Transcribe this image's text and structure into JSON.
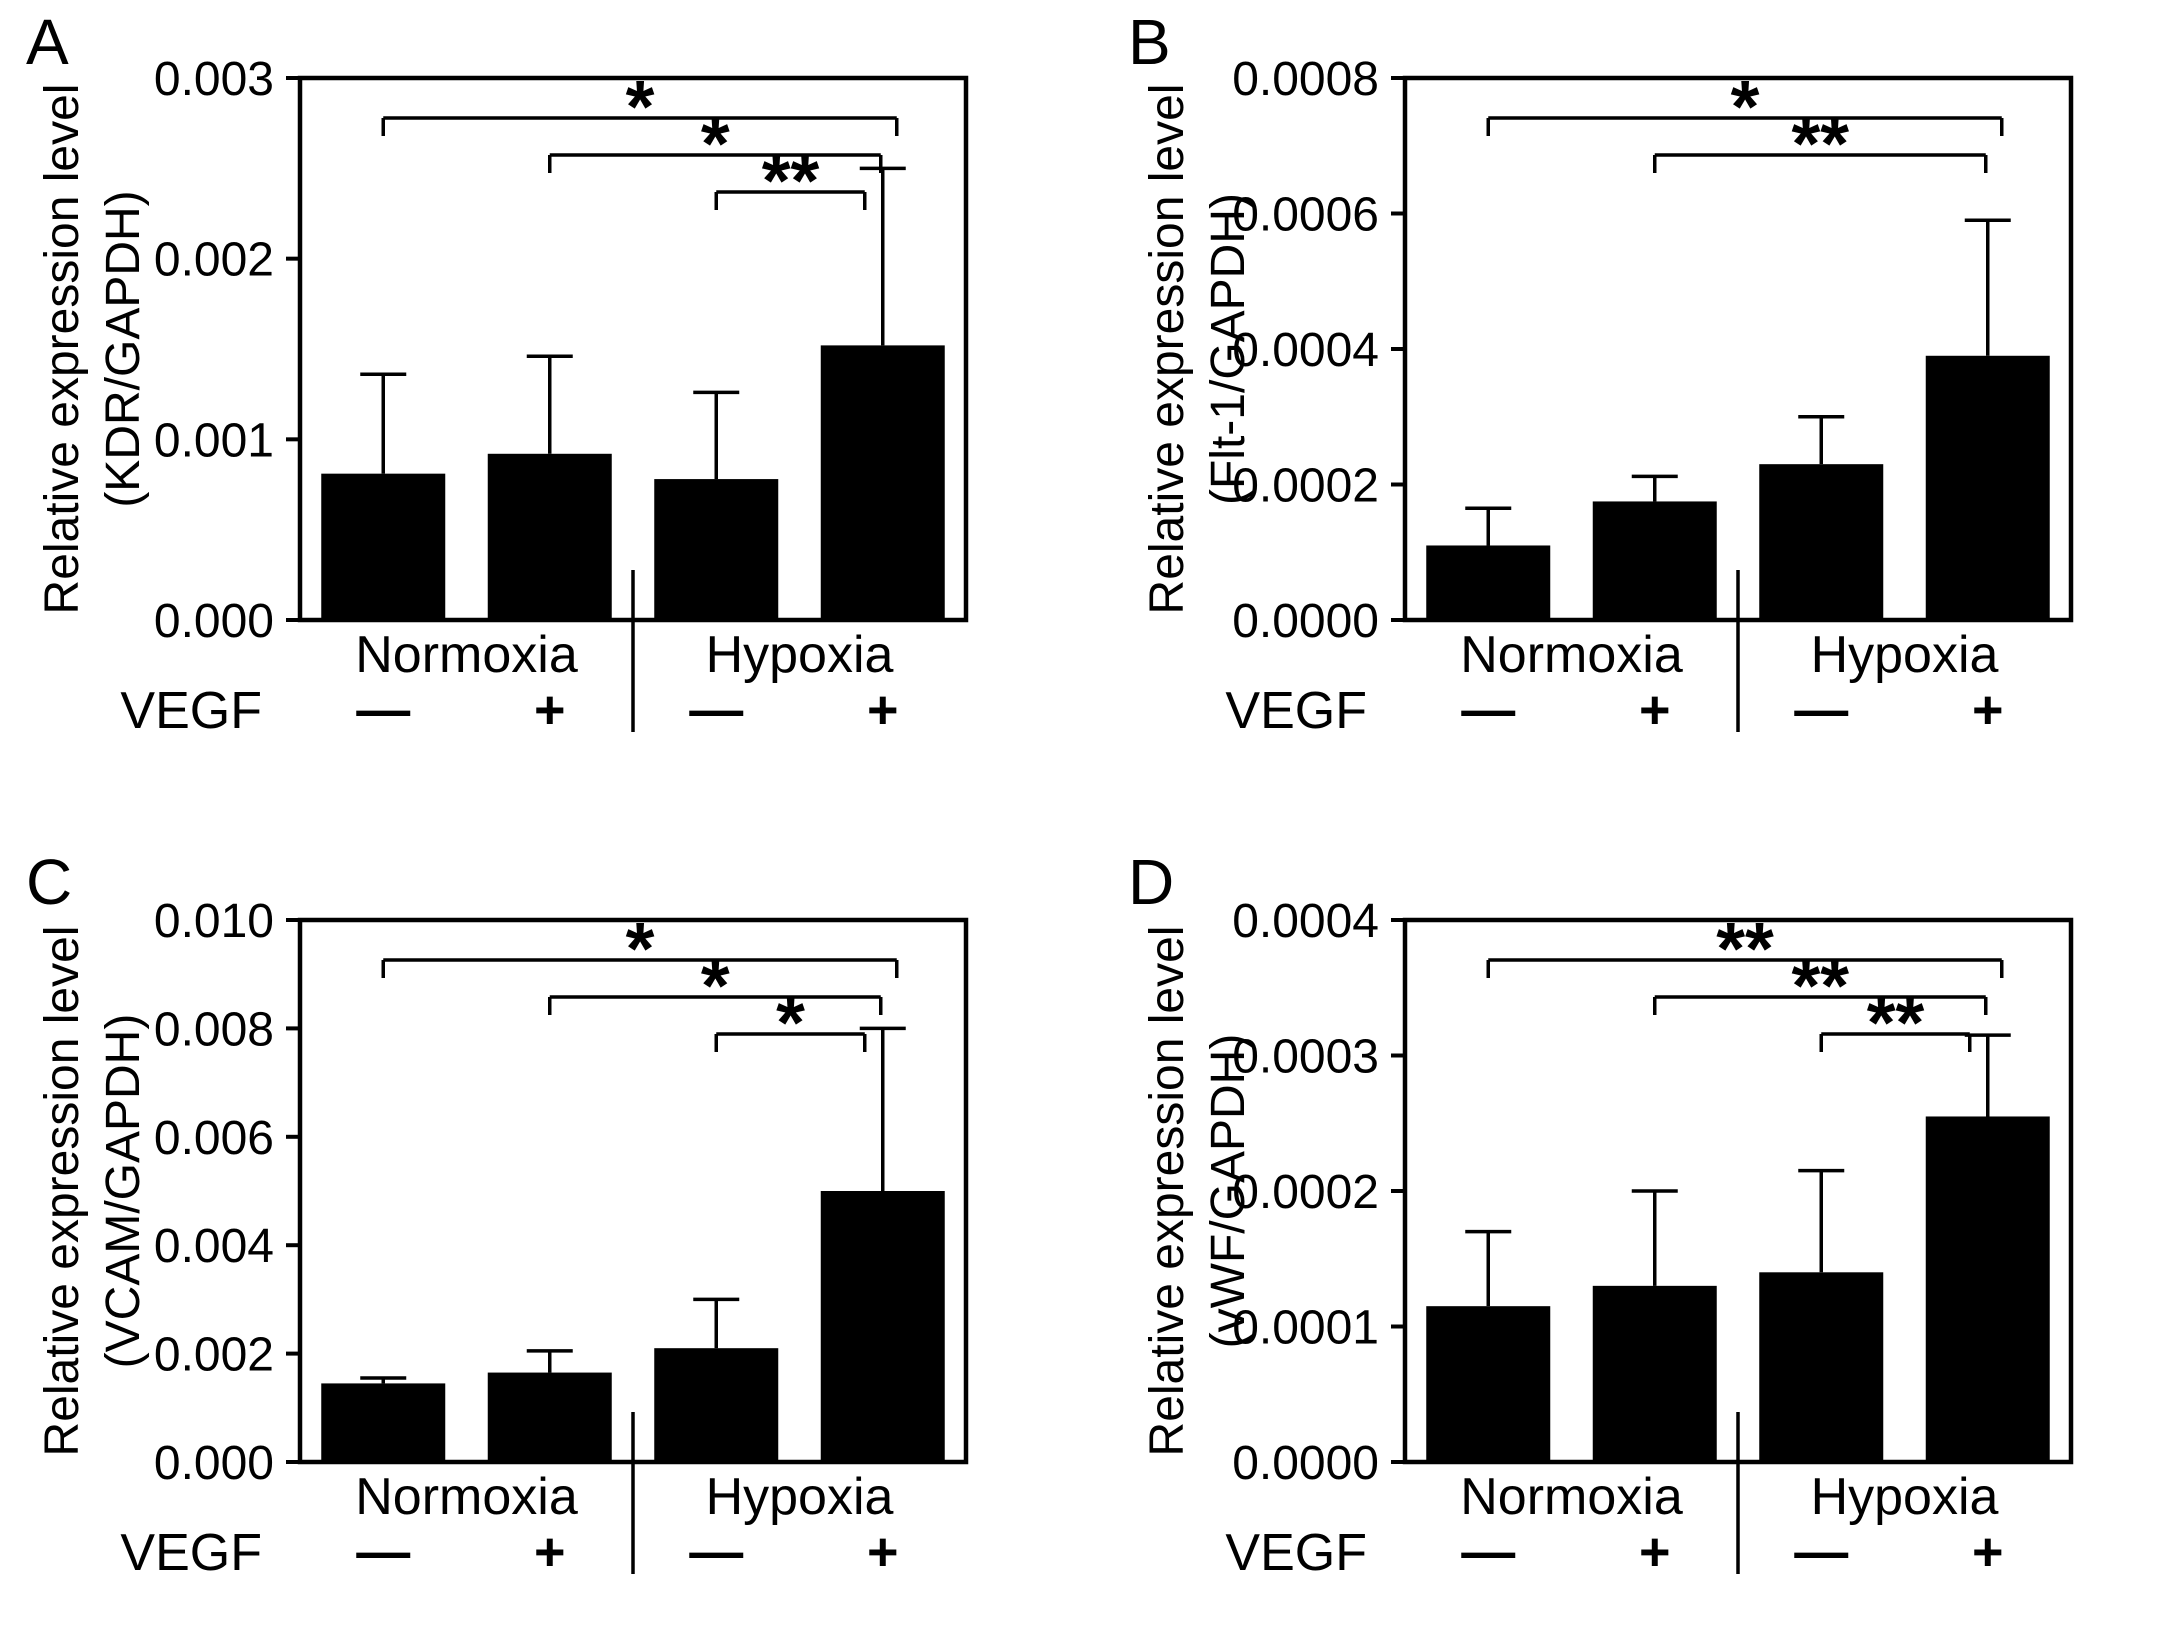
{
  "figure": {
    "background_color": "#ffffff",
    "bar_color": "#000000",
    "axis_color": "#000000"
  },
  "chart_data": [
    {
      "type": "bar",
      "panel": "A",
      "title": "",
      "ylabel": "Relative expression level (KDR/GAPDH)",
      "ylabel_lines": [
        "Relative expression level",
        "(KDR/GAPDH)"
      ],
      "categories": [
        "Normoxia −VEGF",
        "Normoxia +VEGF",
        "Hypoxia −VEGF",
        "Hypoxia +VEGF"
      ],
      "group_labels": [
        "Normoxia",
        "Hypoxia"
      ],
      "vegf_label": "VEGF",
      "vegf_signs": [
        "—",
        "+",
        "—",
        "+"
      ],
      "values": [
        0.00081,
        0.00092,
        0.00078,
        0.00152
      ],
      "errors_upper": [
        0.00055,
        0.00054,
        0.00048,
        0.00098
      ],
      "ylim": [
        0,
        0.003
      ],
      "yticks": [
        0,
        0.001,
        0.002,
        0.003
      ],
      "ytick_labels": [
        "0.000",
        "0.001",
        "0.002",
        "0.003"
      ],
      "grid": false,
      "legend": "none",
      "significance": [
        {
          "pair": [
            0,
            3
          ],
          "label": "*",
          "level": 0
        },
        {
          "pair": [
            1,
            3
          ],
          "label": "*",
          "level": 1
        },
        {
          "pair": [
            2,
            3
          ],
          "label": "**",
          "level": 2
        }
      ]
    },
    {
      "type": "bar",
      "panel": "B",
      "title": "",
      "ylabel": "Relative expression level (Flt-1/GAPDH)",
      "ylabel_lines": [
        "Relative expression level",
        "(Flt-1/GAPDH)"
      ],
      "categories": [
        "Normoxia −VEGF",
        "Normoxia +VEGF",
        "Hypoxia −VEGF",
        "Hypoxia +VEGF"
      ],
      "group_labels": [
        "Normoxia",
        "Hypoxia"
      ],
      "vegf_label": "VEGF",
      "vegf_signs": [
        "—",
        "+",
        "—",
        "+"
      ],
      "values": [
        0.00011,
        0.000175,
        0.00023,
        0.00039
      ],
      "errors_upper": [
        5.5e-05,
        3.7e-05,
        7e-05,
        0.0002
      ],
      "ylim": [
        0,
        0.0008
      ],
      "yticks": [
        0,
        0.0002,
        0.0004,
        0.0006,
        0.0008
      ],
      "ytick_labels": [
        "0.0000",
        "0.0002",
        "0.0004",
        "0.0006",
        "0.0008"
      ],
      "grid": false,
      "legend": "none",
      "significance": [
        {
          "pair": [
            0,
            3
          ],
          "label": "*",
          "level": 0
        },
        {
          "pair": [
            1,
            3
          ],
          "label": "**",
          "level": 1
        }
      ]
    },
    {
      "type": "bar",
      "panel": "C",
      "title": "",
      "ylabel": "Relative expression level (VCAM/GAPDH)",
      "ylabel_lines": [
        "Relative expression level",
        "(VCAM/GAPDH)"
      ],
      "categories": [
        "Normoxia −VEGF",
        "Normoxia +VEGF",
        "Hypoxia −VEGF",
        "Hypoxia +VEGF"
      ],
      "group_labels": [
        "Normoxia",
        "Hypoxia"
      ],
      "vegf_label": "VEGF",
      "vegf_signs": [
        "—",
        "+",
        "—",
        "+"
      ],
      "values": [
        0.00145,
        0.00165,
        0.0021,
        0.005
      ],
      "errors_upper": [
        0.0001,
        0.0004,
        0.0009,
        0.003
      ],
      "ylim": [
        0,
        0.01
      ],
      "yticks": [
        0,
        0.002,
        0.004,
        0.006,
        0.008,
        0.01
      ],
      "ytick_labels": [
        "0.000",
        "0.002",
        "0.004",
        "0.006",
        "0.008",
        "0.010"
      ],
      "grid": false,
      "legend": "none",
      "significance": [
        {
          "pair": [
            0,
            3
          ],
          "label": "*",
          "level": 0
        },
        {
          "pair": [
            1,
            3
          ],
          "label": "*",
          "level": 1
        },
        {
          "pair": [
            2,
            3
          ],
          "label": "*",
          "level": 2
        }
      ]
    },
    {
      "type": "bar",
      "panel": "D",
      "title": "",
      "ylabel": "Relative expression level (vWF/GAPDH)",
      "ylabel_lines": [
        "Relative expression level",
        "(vWF/GAPDH)"
      ],
      "categories": [
        "Normoxia −VEGF",
        "Normoxia +VEGF",
        "Hypoxia −VEGF",
        "Hypoxia +VEGF"
      ],
      "group_labels": [
        "Normoxia",
        "Hypoxia"
      ],
      "vegf_label": "VEGF",
      "vegf_signs": [
        "—",
        "+",
        "—",
        "+"
      ],
      "values": [
        0.000115,
        0.00013,
        0.00014,
        0.000255
      ],
      "errors_upper": [
        5.5e-05,
        7e-05,
        7.5e-05,
        6e-05
      ],
      "ylim": [
        0,
        0.0004
      ],
      "yticks": [
        0,
        0.0001,
        0.0002,
        0.0003,
        0.0004
      ],
      "ytick_labels": [
        "0.0000",
        "0.0001",
        "0.0002",
        "0.0003",
        "0.0004"
      ],
      "grid": false,
      "legend": "none",
      "significance": [
        {
          "pair": [
            0,
            3
          ],
          "label": "**",
          "level": 0
        },
        {
          "pair": [
            1,
            3
          ],
          "label": "**",
          "level": 1
        },
        {
          "pair": [
            2,
            3
          ],
          "label": "**",
          "level": 2
        }
      ]
    }
  ]
}
